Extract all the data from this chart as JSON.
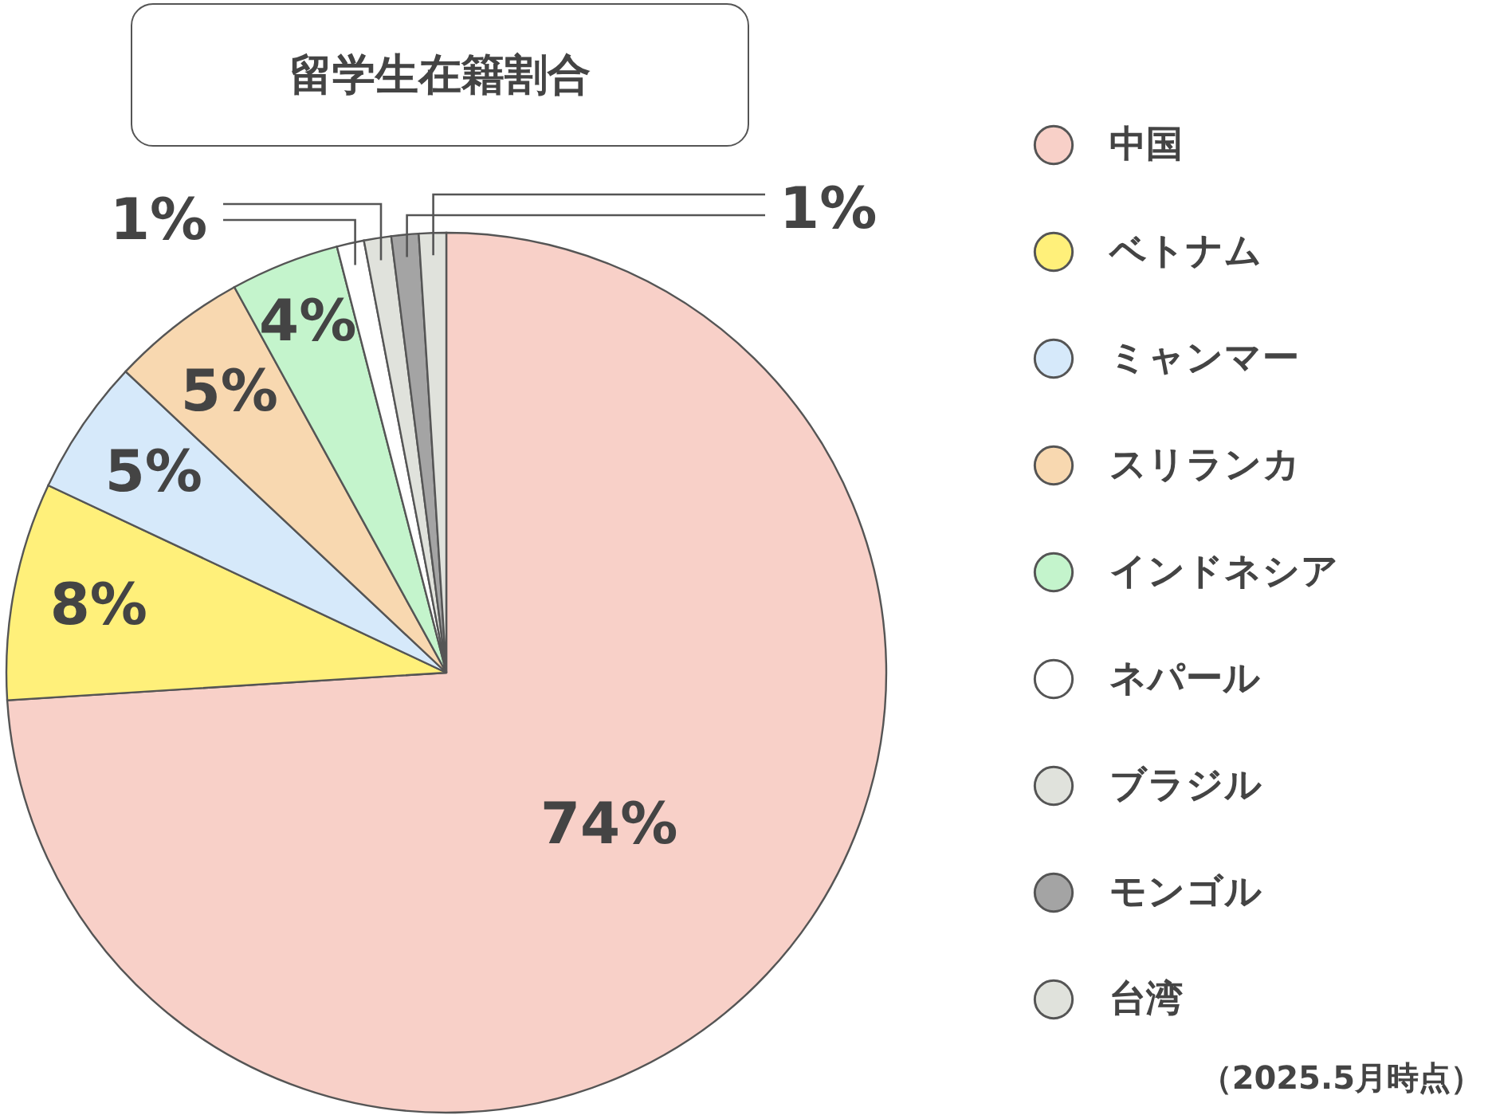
{
  "chart_data": {
    "type": "pie",
    "title": "留学生在籍割合",
    "categories": [
      "中国",
      "ベトナム",
      "ミャンマー",
      "スリランカ",
      "インドネシア",
      "ネパール",
      "ブラジル",
      "モンゴル",
      "台湾"
    ],
    "values": [
      74,
      8,
      5,
      5,
      4,
      1,
      1,
      1,
      1
    ],
    "colors": [
      "#f8d0c8",
      "#fff07a",
      "#d6e9fa",
      "#f8d8b0",
      "#c4f4cc",
      "#ffffff",
      "#e0e2dc",
      "#a4a4a4",
      "#e0e2dc"
    ],
    "value_labels": [
      "74%",
      "8%",
      "5%",
      "5%",
      "4%",
      "1%",
      null,
      null,
      "1%"
    ],
    "legend": "right",
    "annotations": [
      "（2025.5月時点）"
    ]
  }
}
